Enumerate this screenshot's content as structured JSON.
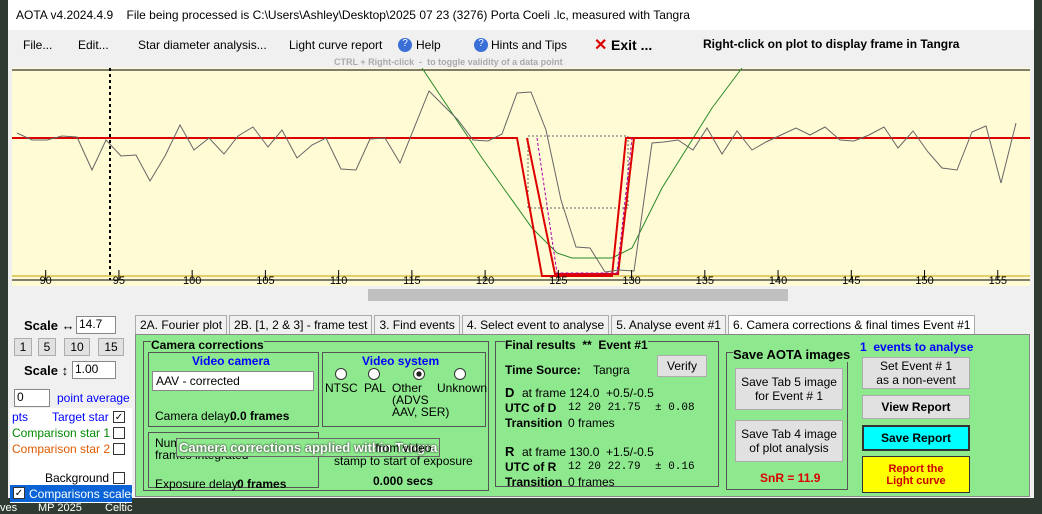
{
  "window": {
    "title": "AOTA v4.2024.4.9    File being processed is C:\\Users\\Ashley\\Desktop\\2025 07 23 (3276) Porta Coeli .lc, measured with Tangra"
  },
  "menu": {
    "items": [
      "File...",
      "Edit...",
      "Star diameter analysis...",
      "Light curve report",
      "Help",
      "Hints and Tips",
      "Exit ..."
    ],
    "note": "Right-click on plot to display frame in Tangra",
    "hint": "CTRL + Right-click  -  to toggle validity of a data point"
  },
  "plot": {
    "xlim": [
      87.7,
      157.2
    ],
    "xticks": [
      90,
      95,
      100,
      105,
      110,
      115,
      120,
      125,
      130,
      135,
      140,
      145,
      150,
      155
    ]
  },
  "left_panel": {
    "scale_h_label": "Scale ↔",
    "scale_h_value": "14.7",
    "buttons": [
      "1",
      "5",
      "10",
      "15"
    ],
    "scale_v_label": "Scale ↕",
    "scale_v_value": "1.00",
    "average_value": "0",
    "average_label": "point average",
    "pts": "pts",
    "target": "Target star",
    "comp1": "Comparison star 1",
    "comp2": "Comparison star 2",
    "background": "Background",
    "scaled": "Comparisons scaled"
  },
  "tabs": [
    "2A. Fourier plot",
    "2B. [1, 2 & 3] - frame test",
    "3. Find events",
    "4. Select event to analyse",
    "5. Analyse event #1",
    "6. Camera corrections & final times Event #1"
  ],
  "camera": {
    "title": "Camera corrections",
    "video_camera": "Video camera",
    "camera_choice": "AAV - corrected",
    "delay_label": "Camera delay:",
    "delay_value": "0.0 frames",
    "video_system": "Video system",
    "systems": [
      "NTSC",
      "PAL",
      "Other",
      "Unknown"
    ],
    "other_note": "(ADVS\nAAV, SER)",
    "frames_integrated": "Num\nframes integrated",
    "tooltip": "Camera corrections applied within Tangra",
    "stamp_note": "from video\nstamp to start of exposure",
    "exposure_label": "Exposure delay:",
    "exposure_value": "0 frames",
    "secs": "0.000 secs"
  },
  "results": {
    "title": "Final results  **  Event #1",
    "time_source_label": "Time Source:",
    "time_source": "Tangra",
    "verify": "Verify",
    "d_label": "D",
    "d_frame": "at frame 124.0  +0.5/-0.5",
    "utc_d_label": "UTC of D",
    "utc_d": "12 20 21.75",
    "utc_d_err": "± 0.08",
    "d_transition_label": "Transition",
    "d_transition": "0 frames",
    "r_label": "R",
    "r_frame": "at frame 130.0  +1.5/-0.5",
    "utc_r_label": "UTC of R",
    "utc_r": "12 20 22.79",
    "utc_r_err": "± 0.16",
    "r_transition_label": "Transition",
    "r_transition": "0 frames"
  },
  "save": {
    "title": "Save AOTA images",
    "tab5": "Save Tab 5 image\nfor Event # 1",
    "tab4": "Save Tab 4 image\nof plot analysis",
    "snr": "SnR = 11.9"
  },
  "events": {
    "title": "1  events to analyse",
    "non_event": "Set Event # 1\nas a non-event",
    "view": "View Report",
    "save": "Save Report",
    "report": "Report the\nLight curve"
  },
  "taskbar": [
    "ves",
    "MP 2025",
    "Celtic"
  ]
}
